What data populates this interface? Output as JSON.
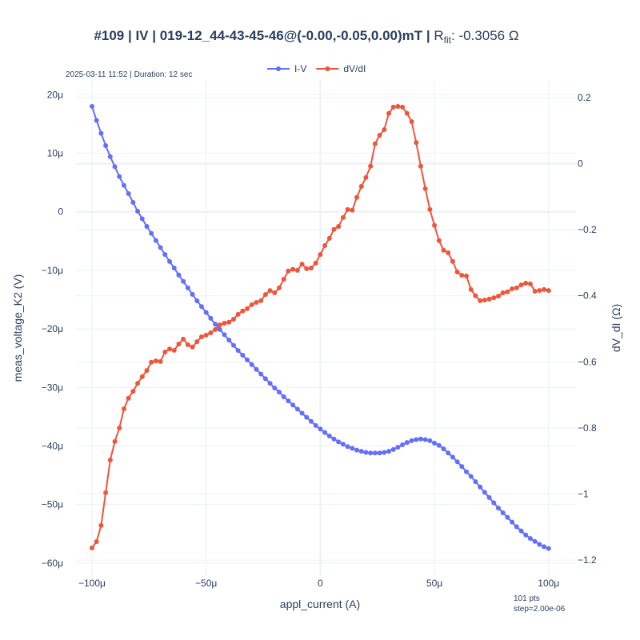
{
  "chart_data": {
    "type": "line",
    "title": "#109 | IV | 019-12_44-43-45-46@(-0.00,-0.05,0.00)mT | ",
    "title_symbol": "R",
    "title_subscript": "fit",
    "title_value": ": -0.3056 Ω",
    "annotations": [
      "2025-03-11 11:52 | Duration: 12 sec",
      "101 pts",
      "step=2.00e-06"
    ],
    "xlabel": "appl_current (A)",
    "ylabel": "meas_voltage_K2 (V)",
    "y2label": "dV_dI (Ω)",
    "grid": true,
    "legend": "top",
    "xlim": [
      -0.000107,
      0.000112
    ],
    "ylim": [
      -6.22e-05,
      2.25e-05
    ],
    "y2lim": [
      -1.248,
      0.253
    ],
    "xticks": [
      {
        "value": -0.0001,
        "label": "−100μ"
      },
      {
        "value": -5e-05,
        "label": "−50μ"
      },
      0,
      {
        "value": 5e-05,
        "label": "50μ"
      },
      {
        "value": 0.0001,
        "label": "100μ"
      }
    ],
    "yticks": [
      {
        "value": 2e-05,
        "label": "20μ"
      },
      {
        "value": 1e-05,
        "label": "10μ"
      },
      0,
      {
        "value": -1e-05,
        "label": "−10μ"
      },
      {
        "value": -2e-05,
        "label": "−20μ"
      },
      {
        "value": -3e-05,
        "label": "−30μ"
      },
      {
        "value": -4e-05,
        "label": "−40μ"
      },
      {
        "value": -5e-05,
        "label": "−50μ"
      },
      {
        "value": -6e-05,
        "label": "−60μ"
      }
    ],
    "y2ticks": [
      0.2,
      0,
      {
        "value": -0.2,
        "label": "−0.2"
      },
      {
        "value": -0.4,
        "label": "−0.4"
      },
      {
        "value": -0.6,
        "label": "−0.6"
      },
      {
        "value": -0.8,
        "label": "−0.8"
      },
      {
        "value": -1,
        "label": "−1"
      },
      {
        "value": -1.2,
        "label": "−1.2"
      }
    ],
    "x": [
      -0.0001,
      -9.8e-05,
      -9.6e-05,
      -9.4e-05,
      -9.2e-05,
      -9e-05,
      -8.8e-05,
      -8.6e-05,
      -8.4e-05,
      -8.2e-05,
      -8e-05,
      -7.8e-05,
      -7.6e-05,
      -7.4e-05,
      -7.2e-05,
      -7e-05,
      -6.8e-05,
      -6.6e-05,
      -6.4e-05,
      -6.2e-05,
      -6e-05,
      -5.8e-05,
      -5.6e-05,
      -5.4e-05,
      -5.2e-05,
      -5e-05,
      -4.8e-05,
      -4.6e-05,
      -4.4e-05,
      -4.2e-05,
      -4e-05,
      -3.8e-05,
      -3.6e-05,
      -3.4e-05,
      -3.2e-05,
      -3e-05,
      -2.8e-05,
      -2.6e-05,
      -2.4e-05,
      -2.2e-05,
      -2e-05,
      -1.8e-05,
      -1.6e-05,
      -1.4e-05,
      -1.2e-05,
      -1e-05,
      -8e-06,
      -6e-06,
      -4e-06,
      -2e-06,
      0,
      2e-06,
      4e-06,
      6e-06,
      8e-06,
      1e-05,
      1.2e-05,
      1.4e-05,
      1.6e-05,
      1.8e-05,
      2e-05,
      2.2e-05,
      2.4e-05,
      2.6e-05,
      2.8e-05,
      3e-05,
      3.2e-05,
      3.4e-05,
      3.6e-05,
      3.8e-05,
      4e-05,
      4.2e-05,
      4.4e-05,
      4.6e-05,
      4.8e-05,
      5e-05,
      5.2e-05,
      5.4e-05,
      5.6e-05,
      5.8e-05,
      6e-05,
      6.2e-05,
      6.4e-05,
      6.6e-05,
      6.8e-05,
      7e-05,
      7.2e-05,
      7.4e-05,
      7.6e-05,
      7.8e-05,
      8e-05,
      8.2e-05,
      8.4e-05,
      8.6e-05,
      8.8e-05,
      9e-05,
      9.2e-05,
      9.4e-05,
      9.6e-05,
      9.8e-05,
      0.0001
    ],
    "series": [
      {
        "name": "I-V",
        "color": "#636efa",
        "axis": "y",
        "values": [
          1.8e-05,
          1.56e-05,
          1.34e-05,
          1.13e-05,
          9.4e-06,
          7.7e-06,
          6e-06,
          4.5e-06,
          3.1e-06,
          1.6e-06,
          1e-07,
          -1.2e-06,
          -2.5e-06,
          -3.7e-06,
          -4.9e-06,
          -6.1e-06,
          -7.3e-06,
          -8.5e-06,
          -9.6e-06,
          -1.08e-05,
          -1.19e-05,
          -1.3e-05,
          -1.41e-05,
          -1.52e-05,
          -1.62e-05,
          -1.72e-05,
          -1.82e-05,
          -1.92e-05,
          -2.01e-05,
          -2.1e-05,
          -2.19e-05,
          -2.28e-05,
          -2.37e-05,
          -2.45e-05,
          -2.53e-05,
          -2.61e-05,
          -2.69e-05,
          -2.77e-05,
          -2.85e-05,
          -2.93e-05,
          -3.01e-05,
          -3.08e-05,
          -3.16e-05,
          -3.23e-05,
          -3.3e-05,
          -3.37e-05,
          -3.44e-05,
          -3.51e-05,
          -3.58e-05,
          -3.65e-05,
          -3.71e-05,
          -3.77e-05,
          -3.83e-05,
          -3.88e-05,
          -3.93e-05,
          -3.97e-05,
          -4.01e-05,
          -4.04e-05,
          -4.07e-05,
          -4.09e-05,
          -4.11e-05,
          -4.12e-05,
          -4.12e-05,
          -4.12e-05,
          -4.11e-05,
          -4.09e-05,
          -4.06e-05,
          -4.02e-05,
          -3.98e-05,
          -3.94e-05,
          -3.91e-05,
          -3.89e-05,
          -3.88e-05,
          -3.89e-05,
          -3.91e-05,
          -3.95e-05,
          -3.99e-05,
          -4.05e-05,
          -4.12e-05,
          -4.19e-05,
          -4.27e-05,
          -4.35e-05,
          -4.44e-05,
          -4.52e-05,
          -4.61e-05,
          -4.7e-05,
          -4.79e-05,
          -4.88e-05,
          -4.97e-05,
          -5.06e-05,
          -5.14e-05,
          -5.22e-05,
          -5.3e-05,
          -5.38e-05,
          -5.45e-05,
          -5.52e-05,
          -5.58e-05,
          -5.63e-05,
          -5.68e-05,
          -5.72e-05,
          -5.75e-05
        ]
      },
      {
        "name": "dV/dI",
        "color": "#ef553b",
        "axis": "y2",
        "values": [
          -1.163,
          -1.144,
          -1.095,
          -0.996,
          -0.897,
          -0.841,
          -0.8,
          -0.742,
          -0.71,
          -0.689,
          -0.665,
          -0.645,
          -0.626,
          -0.601,
          -0.597,
          -0.599,
          -0.57,
          -0.561,
          -0.565,
          -0.546,
          -0.531,
          -0.548,
          -0.555,
          -0.539,
          -0.524,
          -0.519,
          -0.512,
          -0.502,
          -0.488,
          -0.483,
          -0.48,
          -0.471,
          -0.456,
          -0.446,
          -0.439,
          -0.427,
          -0.42,
          -0.415,
          -0.396,
          -0.384,
          -0.391,
          -0.376,
          -0.35,
          -0.325,
          -0.32,
          -0.323,
          -0.304,
          -0.318,
          -0.316,
          -0.301,
          -0.275,
          -0.248,
          -0.226,
          -0.199,
          -0.19,
          -0.163,
          -0.139,
          -0.141,
          -0.102,
          -0.069,
          -0.042,
          -0.008,
          0.06,
          0.086,
          0.103,
          0.152,
          0.171,
          0.173,
          0.171,
          0.152,
          0.127,
          0.064,
          -0.008,
          -0.076,
          -0.139,
          -0.187,
          -0.233,
          -0.262,
          -0.27,
          -0.296,
          -0.328,
          -0.338,
          -0.34,
          -0.381,
          -0.4,
          -0.415,
          -0.413,
          -0.41,
          -0.406,
          -0.401,
          -0.391,
          -0.388,
          -0.379,
          -0.376,
          -0.367,
          -0.362,
          -0.364,
          -0.386,
          -0.384,
          -0.381,
          -0.384
        ]
      }
    ]
  }
}
